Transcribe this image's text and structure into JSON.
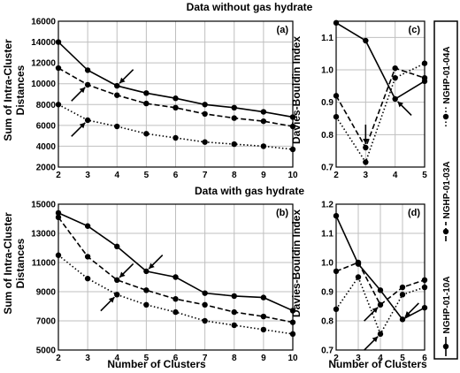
{
  "chart_data": [
    {
      "panel": "a",
      "type": "line",
      "panel_label": "(a)",
      "xlim": [
        2,
        10
      ],
      "ylim": [
        2000,
        16000
      ],
      "xticks": [
        2,
        3,
        4,
        5,
        6,
        7,
        8,
        9,
        10
      ],
      "yticks": [
        2000,
        4000,
        6000,
        8000,
        10000,
        12000,
        14000,
        16000
      ],
      "grid": true,
      "series": [
        {
          "name": "NGHP-01-10A",
          "style": "solid",
          "x": [
            2,
            3,
            4,
            5,
            6,
            7,
            8,
            9,
            10
          ],
          "y": [
            14000,
            11300,
            9800,
            9100,
            8600,
            8000,
            7700,
            7300,
            6800
          ]
        },
        {
          "name": "NGHP-01-03A",
          "style": "dashed",
          "x": [
            2,
            3,
            4,
            5,
            6,
            7,
            8,
            9,
            10
          ],
          "y": [
            11500,
            9900,
            8900,
            8100,
            7700,
            7100,
            6700,
            6400,
            5900
          ]
        },
        {
          "name": "NGHP-01-04A",
          "style": "dotted",
          "x": [
            2,
            3,
            4,
            5,
            6,
            7,
            8,
            9,
            10
          ],
          "y": [
            8000,
            6500,
            5900,
            5200,
            4800,
            4400,
            4200,
            4000,
            3700
          ]
        }
      ],
      "arrows": [
        {
          "tip_x": 4,
          "tip_y": 9800
        },
        {
          "tip_x": 3,
          "tip_y": 9900
        },
        {
          "tip_x": 3,
          "tip_y": 6500
        }
      ]
    },
    {
      "panel": "b",
      "type": "line",
      "panel_label": "(b)",
      "xlim": [
        2,
        10
      ],
      "ylim": [
        5000,
        15000
      ],
      "xticks": [
        2,
        3,
        4,
        5,
        6,
        7,
        8,
        9,
        10
      ],
      "yticks": [
        5000,
        7000,
        9000,
        11000,
        13000,
        15000
      ],
      "grid": true,
      "series": [
        {
          "name": "NGHP-01-10A",
          "style": "solid",
          "x": [
            2,
            3,
            4,
            5,
            6,
            7,
            8,
            9,
            10
          ],
          "y": [
            14400,
            13500,
            12100,
            10400,
            10000,
            8900,
            8700,
            8600,
            7700
          ]
        },
        {
          "name": "NGHP-01-03A",
          "style": "dashed",
          "x": [
            2,
            3,
            4,
            5,
            6,
            7,
            8,
            9,
            10
          ],
          "y": [
            14100,
            11400,
            9800,
            9100,
            8500,
            8100,
            7600,
            7300,
            6900
          ]
        },
        {
          "name": "NGHP-01-04A",
          "style": "dotted",
          "x": [
            2,
            3,
            4,
            5,
            6,
            7,
            8,
            9,
            10
          ],
          "y": [
            11500,
            9900,
            8800,
            8100,
            7600,
            7000,
            6700,
            6400,
            6100
          ]
        }
      ],
      "arrows": [
        {
          "tip_x": 5,
          "tip_y": 10400
        },
        {
          "tip_x": 4,
          "tip_y": 9800
        },
        {
          "tip_x": 4,
          "tip_y": 8800
        }
      ]
    },
    {
      "panel": "c",
      "type": "line",
      "panel_label": "(c)",
      "xlim": [
        2,
        5
      ],
      "ylim": [
        0.7,
        1.15
      ],
      "xticks": [
        2,
        3,
        4,
        5
      ],
      "yticks": [
        0.7,
        0.8,
        0.9,
        1.0,
        1.1
      ],
      "grid": true,
      "series": [
        {
          "name": "NGHP-01-10A",
          "style": "solid",
          "x": [
            2,
            3,
            4,
            5
          ],
          "y": [
            1.145,
            1.09,
            0.91,
            0.965
          ]
        },
        {
          "name": "NGHP-01-03A",
          "style": "dashed",
          "x": [
            2,
            3,
            4,
            5
          ],
          "y": [
            0.92,
            0.76,
            1.005,
            0.975
          ]
        },
        {
          "name": "NGHP-01-04A",
          "style": "dotted",
          "x": [
            2,
            3,
            4,
            5
          ],
          "y": [
            0.855,
            0.715,
            0.975,
            1.02
          ]
        }
      ],
      "arrows": [
        {
          "tip_x": 3,
          "tip_y": 0.76
        },
        {
          "tip_x": 4,
          "tip_y": 0.91
        }
      ]
    },
    {
      "panel": "d",
      "type": "line",
      "panel_label": "(d)",
      "xlim": [
        2,
        6
      ],
      "ylim": [
        0.7,
        1.2
      ],
      "xticks": [
        2,
        3,
        4,
        5,
        6
      ],
      "yticks": [
        0.7,
        0.8,
        0.9,
        1.0,
        1.1,
        1.2
      ],
      "grid": true,
      "series": [
        {
          "name": "NGHP-01-10A",
          "style": "solid",
          "x": [
            2,
            3,
            4,
            5,
            6
          ],
          "y": [
            1.16,
            0.995,
            0.905,
            0.805,
            0.845
          ]
        },
        {
          "name": "NGHP-01-03A",
          "style": "dashed",
          "x": [
            2,
            3,
            4,
            5,
            6
          ],
          "y": [
            0.97,
            1.0,
            0.855,
            0.915,
            0.94
          ]
        },
        {
          "name": "NGHP-01-04A",
          "style": "dotted",
          "x": [
            2,
            3,
            4,
            5,
            6
          ],
          "y": [
            0.84,
            0.95,
            0.755,
            0.89,
            0.915
          ]
        }
      ],
      "arrows": [
        {
          "tip_x": 5,
          "tip_y": 0.805
        },
        {
          "tip_x": 4,
          "tip_y": 0.855
        },
        {
          "tip_x": 4,
          "tip_y": 0.755
        }
      ]
    }
  ],
  "text": {
    "title_top": "Data without gas hydrate",
    "title_bottom": "Data with gas hydrate",
    "ylabel_left_line1": "Sum of Intra-Cluster",
    "ylabel_left_line2": "Distances",
    "ylabel_right": "Davies-Bouldin Index",
    "xlabel": "Number of Clusters"
  },
  "legend": {
    "orientation": "vertical",
    "placement": "right",
    "items": [
      {
        "label": "NGHP-01-10A",
        "style": "solid"
      },
      {
        "label": "NGHP-01-03A",
        "style": "dashed"
      },
      {
        "label": "NGHP-01-04A",
        "style": "dotted"
      }
    ]
  },
  "colors": {
    "line": "#000000",
    "grid": "#bfbfbf",
    "background": "#ffffff"
  }
}
